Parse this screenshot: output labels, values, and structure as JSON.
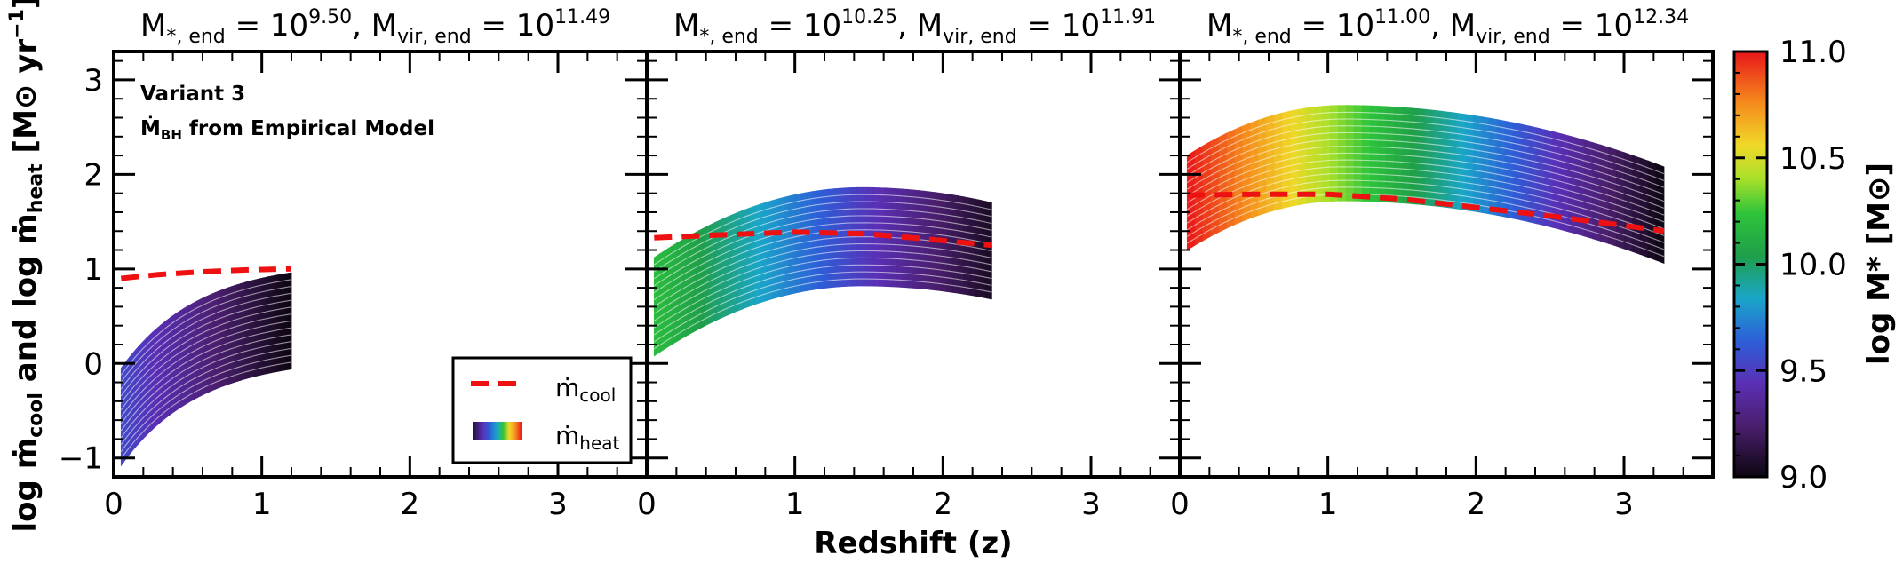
{
  "chart_data": {
    "type": "line",
    "xlabel": "Redshift (z)",
    "ylabel_parts": {
      "prefix": "log ",
      "m1": "ṁ",
      "sub1": "cool",
      "mid": " and log ",
      "m2": "ṁ",
      "sub2": "heat",
      "unit": " [M",
      "sun": "⊙",
      "unit2": " yr",
      "exp": "−1",
      "close": "]"
    },
    "xlim": [
      0,
      3.6
    ],
    "ylim": [
      -1.2,
      3.3
    ],
    "xticks": [
      "0",
      "1",
      "2",
      "3"
    ],
    "yticks": [
      "−1",
      "0",
      "1",
      "2",
      "3"
    ],
    "yticks_values": [
      -1,
      0,
      1,
      2,
      3
    ],
    "xticks_values": [
      0,
      1,
      2,
      3
    ],
    "annotation": {
      "line1": "Variant 3",
      "line2_sym": "Ṁ",
      "line2_sub": "BH",
      "line2_rest": " from Empirical Model"
    },
    "legend": {
      "cool": {
        "sym": "ṁ",
        "sub": "cool"
      },
      "heat": {
        "sym": "ṁ",
        "sub": "heat"
      },
      "placement": "lower-right of panel 1"
    },
    "colorbar": {
      "label": "log M* [M⊙]",
      "label_parts": {
        "a": "log M",
        "star": "*",
        "b": " [M",
        "sun": "⊙",
        "c": "]"
      },
      "min": 9.0,
      "max": 11.0,
      "ticks": [
        "9.0",
        "9.5",
        "10.0",
        "10.5",
        "11.0"
      ],
      "tick_values": [
        9.0,
        9.5,
        10.0,
        10.5,
        11.0
      ]
    },
    "panels": [
      {
        "title": {
          "a": "M",
          "a_sub": "*, end",
          "eq1": " = 10",
          "exp1": "9.50",
          "comma": ",  M",
          "b_sub": "vir, end",
          "eq2": " = 10",
          "exp2": "11.49"
        },
        "cool": {
          "x": [
            0.05,
            0.3,
            0.6,
            0.9,
            1.2
          ],
          "y": [
            0.9,
            0.94,
            0.97,
            0.99,
            1.0
          ]
        },
        "heat_band": {
          "x_start": 0.05,
          "x_end": 1.2,
          "upper_start": -0.05,
          "upper_end": 0.96,
          "lower_start": -1.08,
          "lower_end": -0.06,
          "curvature": 2.2
        },
        "heat_color_start": 9.55,
        "heat_color_end": 9.0
      },
      {
        "title": {
          "a": "M",
          "a_sub": "*, end",
          "eq1": " = 10",
          "exp1": "10.25",
          "comma": ",  M",
          "b_sub": "vir, end",
          "eq2": " = 10",
          "exp2": "11.91"
        },
        "cool": {
          "x": [
            0.05,
            0.5,
            1.0,
            1.5,
            2.0,
            2.33
          ],
          "y": [
            1.33,
            1.36,
            1.39,
            1.37,
            1.3,
            1.25
          ]
        },
        "heat_band": {
          "x_start": 0.05,
          "x_end": 2.33,
          "upper_start": 1.12,
          "upper_peak": 1.86,
          "upper_end": 1.7,
          "lower_start": 0.08,
          "lower_peak": 0.82,
          "lower_end": 0.68,
          "peak_x": 1.45
        },
        "heat_color_start": 10.2,
        "heat_color_end": 9.05
      },
      {
        "title": {
          "a": "M",
          "a_sub": "*, end",
          "eq1": " = 10",
          "exp1": "11.00",
          "comma": ",  M",
          "b_sub": "vir, end",
          "eq2": " = 10",
          "exp2": "12.34"
        },
        "cool": {
          "x": [
            0.05,
            0.5,
            1.0,
            1.5,
            2.0,
            2.5,
            3.0,
            3.27
          ],
          "y": [
            1.78,
            1.79,
            1.79,
            1.74,
            1.65,
            1.56,
            1.46,
            1.4
          ]
        },
        "heat_band": {
          "x_start": 0.05,
          "x_end": 3.27,
          "upper_start": 2.2,
          "upper_peak": 2.73,
          "upper_end": 2.08,
          "lower_start": 1.2,
          "lower_peak": 1.72,
          "lower_end": 1.06,
          "peak_x": 1.1
        },
        "heat_color_start": 11.0,
        "heat_color_end": 9.0
      }
    ]
  }
}
